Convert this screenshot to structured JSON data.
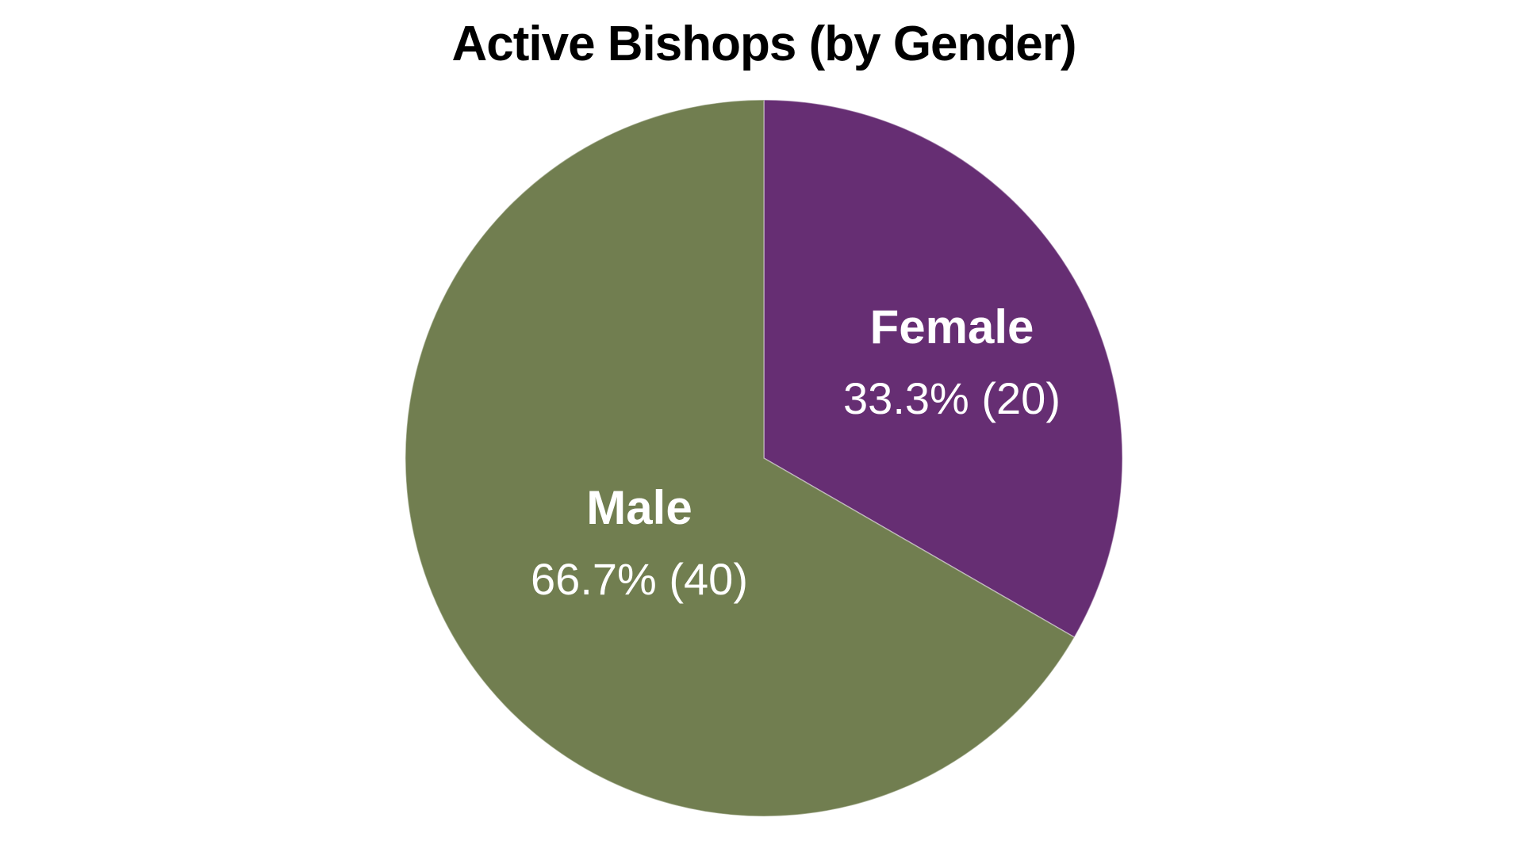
{
  "page": {
    "background_color": "#FFFFFF"
  },
  "chart_data": {
    "type": "pie",
    "title": "Active Bishops (by Gender)",
    "title_color": "#000000",
    "label_text_color": "#FFFFFF",
    "legend": "none",
    "start_angle_deg": 0,
    "direction": "clockwise",
    "total": 60,
    "slices": [
      {
        "label": "Female",
        "value": 20,
        "percent": "33.3%",
        "display": "33.3% (20)",
        "color": "#662E73"
      },
      {
        "label": "Male",
        "value": 40,
        "percent": "66.7%",
        "display": "66.7% (40)",
        "color": "#717E50"
      }
    ]
  }
}
